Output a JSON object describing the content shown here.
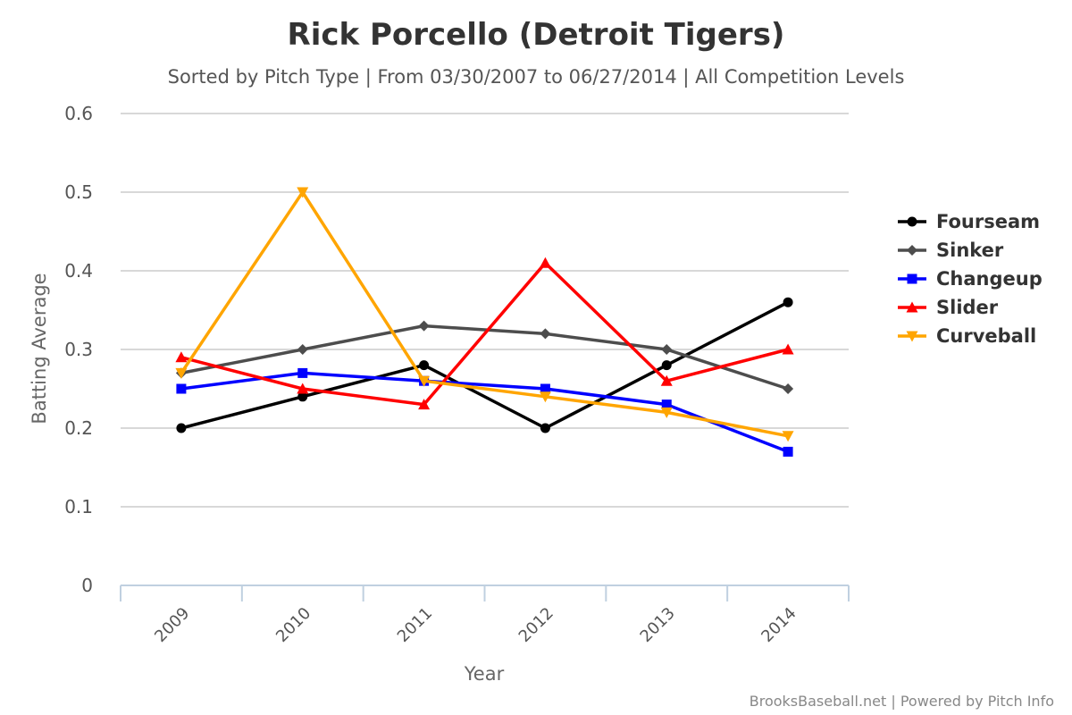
{
  "chart_data": {
    "type": "line",
    "title": "Rick Porcello (Detroit Tigers)",
    "subtitle": "Sorted by Pitch Type | From 03/30/2007 to 06/27/2014 | All Competition Levels",
    "xlabel": "Year",
    "ylabel": "Batting Average",
    "categories": [
      "2009",
      "2010",
      "2011",
      "2012",
      "2013",
      "2014"
    ],
    "ylim": [
      0,
      0.6
    ],
    "yticks": [
      "0",
      "0.1",
      "0.2",
      "0.3",
      "0.4",
      "0.5",
      "0.6"
    ],
    "grid": true,
    "legend_position": "right",
    "series": [
      {
        "name": "Fourseam",
        "color": "#000000",
        "marker": "circle",
        "values": [
          0.2,
          0.24,
          0.28,
          0.2,
          0.28,
          0.36
        ]
      },
      {
        "name": "Sinker",
        "color": "#4d4d4d",
        "marker": "diamond",
        "values": [
          0.27,
          0.3,
          0.33,
          0.32,
          0.3,
          0.25
        ]
      },
      {
        "name": "Changeup",
        "color": "#0000ff",
        "marker": "square",
        "values": [
          0.25,
          0.27,
          0.26,
          0.25,
          0.23,
          0.17
        ]
      },
      {
        "name": "Slider",
        "color": "#ff0000",
        "marker": "triangle",
        "values": [
          0.29,
          0.25,
          0.23,
          0.41,
          0.26,
          0.3
        ]
      },
      {
        "name": "Curveball",
        "color": "#ffa500",
        "marker": "triangle-down",
        "values": [
          0.27,
          0.5,
          0.26,
          0.24,
          0.22,
          0.19
        ]
      }
    ],
    "credits": "BrooksBaseball.net | Powered by Pitch Info"
  }
}
